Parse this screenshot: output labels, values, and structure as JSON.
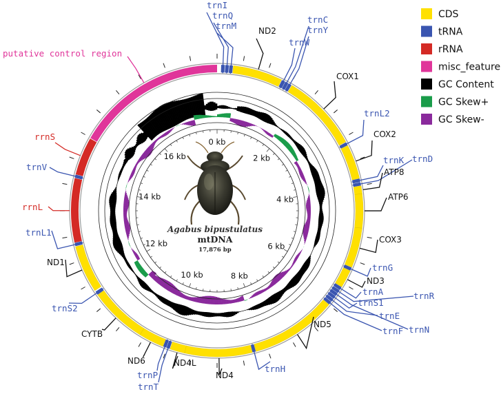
{
  "legend": [
    {
      "label": "CDS",
      "color": "#ffe000"
    },
    {
      "label": "tRNA",
      "color": "#3a55b0"
    },
    {
      "label": "rRNA",
      "color": "#d42a25"
    },
    {
      "label": "misc_feature",
      "color": "#e0359a"
    },
    {
      "label": "GC Content",
      "color": "#000000"
    },
    {
      "label": "GC Skew+",
      "color": "#1a9c4a"
    },
    {
      "label": "GC Skew-",
      "color": "#8a2a9c"
    }
  ],
  "center": {
    "species": "Agabus bipustulatus",
    "molecule": "mtDNA",
    "length": "17,876 bp"
  },
  "kb_ticks": [
    "0 kb",
    "2 kb",
    "4 kb",
    "6 kb",
    "8 kb",
    "10 kb",
    "12 kb",
    "14 kb",
    "16 kb"
  ],
  "genome_length": 17876,
  "features": [
    {
      "name": "trnI",
      "type": "tRNA",
      "start": 80,
      "end": 150
    },
    {
      "name": "trnQ",
      "type": "tRNA",
      "start": 160,
      "end": 230
    },
    {
      "name": "trnM",
      "type": "tRNA",
      "start": 240,
      "end": 310
    },
    {
      "name": "ND2",
      "type": "CDS",
      "start": 320,
      "end": 1300
    },
    {
      "name": "trnW",
      "type": "tRNA",
      "start": 1310,
      "end": 1380
    },
    {
      "name": "trnC",
      "type": "tRNA",
      "start": 1385,
      "end": 1450
    },
    {
      "name": "trnY",
      "type": "tRNA",
      "start": 1455,
      "end": 1520
    },
    {
      "name": "COX1",
      "type": "CDS",
      "start": 1530,
      "end": 3070
    },
    {
      "name": "trnL2",
      "type": "tRNA",
      "start": 3080,
      "end": 3145
    },
    {
      "name": "COX2",
      "type": "CDS",
      "start": 3150,
      "end": 3830
    },
    {
      "name": "trnK",
      "type": "tRNA",
      "start": 3835,
      "end": 3905
    },
    {
      "name": "trnD",
      "type": "tRNA",
      "start": 3910,
      "end": 3975
    },
    {
      "name": "ATP8",
      "type": "CDS",
      "start": 3980,
      "end": 4140
    },
    {
      "name": "ATP6",
      "type": "CDS",
      "start": 4135,
      "end": 4810
    },
    {
      "name": "COX3",
      "type": "CDS",
      "start": 4810,
      "end": 5600
    },
    {
      "name": "trnG",
      "type": "tRNA",
      "start": 5605,
      "end": 5670
    },
    {
      "name": "ND3",
      "type": "CDS",
      "start": 5675,
      "end": 6030
    },
    {
      "name": "trnA",
      "type": "tRNA",
      "start": 6035,
      "end": 6100
    },
    {
      "name": "trnR",
      "type": "tRNA",
      "start": 6105,
      "end": 6170
    },
    {
      "name": "trnN",
      "type": "tRNA",
      "start": 6175,
      "end": 6240
    },
    {
      "name": "trnS1",
      "type": "tRNA",
      "start": 6245,
      "end": 6310
    },
    {
      "name": "trnE",
      "type": "tRNA",
      "start": 6315,
      "end": 6380
    },
    {
      "name": "trnF",
      "type": "tRNA",
      "start": 6385,
      "end": 6450
    },
    {
      "name": "ND5",
      "type": "CDS",
      "start": 6455,
      "end": 8170
    },
    {
      "name": "trnH",
      "type": "tRNA",
      "start": 8175,
      "end": 8240
    },
    {
      "name": "ND4",
      "type": "CDS",
      "start": 8245,
      "end": 9580
    },
    {
      "name": "ND4L",
      "type": "CDS",
      "start": 9575,
      "end": 9870
    },
    {
      "name": "trnT",
      "type": "tRNA",
      "start": 9880,
      "end": 9945
    },
    {
      "name": "trnP",
      "type": "tRNA",
      "start": 9950,
      "end": 10015
    },
    {
      "name": "ND6",
      "type": "CDS",
      "start": 10020,
      "end": 10520
    },
    {
      "name": "CYTB",
      "type": "CDS",
      "start": 10520,
      "end": 11660
    },
    {
      "name": "trnS2",
      "type": "tRNA",
      "start": 11665,
      "end": 11735
    },
    {
      "name": "ND1",
      "type": "CDS",
      "start": 11760,
      "end": 12700
    },
    {
      "name": "trnL1",
      "type": "tRNA",
      "start": 12710,
      "end": 12775
    },
    {
      "name": "rrnL",
      "type": "rRNA",
      "start": 12780,
      "end": 14050
    },
    {
      "name": "trnV",
      "type": "tRNA",
      "start": 14055,
      "end": 14120
    },
    {
      "name": "rrnS",
      "type": "rRNA",
      "start": 14125,
      "end": 14880
    },
    {
      "name": "putative control region",
      "type": "misc_feature",
      "start": 14890,
      "end": 17876
    }
  ],
  "labels": [
    {
      "text": "trnI",
      "type": "tRNA",
      "pos": 115
    },
    {
      "text": "trnQ",
      "type": "tRNA",
      "pos": 195
    },
    {
      "text": "trnM",
      "type": "tRNA",
      "pos": 275
    },
    {
      "text": "ND2",
      "type": "CDS",
      "pos": 810
    },
    {
      "text": "trnC",
      "type": "tRNA",
      "pos": 1417
    },
    {
      "text": "trnY",
      "type": "tRNA",
      "pos": 1487
    },
    {
      "text": "trnW",
      "type": "tRNA",
      "pos": 1345
    },
    {
      "text": "COX1",
      "type": "CDS",
      "pos": 2300
    },
    {
      "text": "trnL2",
      "type": "tRNA",
      "pos": 3112
    },
    {
      "text": "COX2",
      "type": "CDS",
      "pos": 3490
    },
    {
      "text": "trnK",
      "type": "tRNA",
      "pos": 3870
    },
    {
      "text": "trnD",
      "type": "tRNA",
      "pos": 3942
    },
    {
      "text": "ATP8",
      "type": "CDS",
      "pos": 4060
    },
    {
      "text": "ATP6",
      "type": "CDS",
      "pos": 4470
    },
    {
      "text": "COX3",
      "type": "CDS",
      "pos": 5200
    },
    {
      "text": "trnG",
      "type": "tRNA",
      "pos": 5637
    },
    {
      "text": "ND3",
      "type": "CDS",
      "pos": 5850
    },
    {
      "text": "trnA",
      "type": "tRNA",
      "pos": 6067
    },
    {
      "text": "trnR",
      "type": "tRNA",
      "pos": 6137
    },
    {
      "text": "trnS1",
      "type": "tRNA",
      "pos": 6277
    },
    {
      "text": "trnN",
      "type": "tRNA",
      "pos": 6207
    },
    {
      "text": "trnE",
      "type": "tRNA",
      "pos": 6347
    },
    {
      "text": "trnF",
      "type": "tRNA",
      "pos": 6417
    },
    {
      "text": "ND5",
      "type": "CDS",
      "pos": 7300
    },
    {
      "text": "trnH",
      "type": "tRNA",
      "pos": 8207
    },
    {
      "text": "ND4",
      "type": "CDS",
      "pos": 8900
    },
    {
      "text": "ND4L",
      "type": "CDS",
      "pos": 9720
    },
    {
      "text": "trnP",
      "type": "tRNA",
      "pos": 9982
    },
    {
      "text": "trnT",
      "type": "tRNA",
      "pos": 9912
    },
    {
      "text": "ND6",
      "type": "CDS",
      "pos": 10270
    },
    {
      "text": "CYTB",
      "type": "CDS",
      "pos": 11090
    },
    {
      "text": "trnS2",
      "type": "tRNA",
      "pos": 11700
    },
    {
      "text": "ND1",
      "type": "CDS",
      "pos": 12230
    },
    {
      "text": "trnL1",
      "type": "tRNA",
      "pos": 12742
    },
    {
      "text": "rrnL",
      "type": "rRNA",
      "pos": 13410
    },
    {
      "text": "trnV",
      "type": "tRNA",
      "pos": 14087
    },
    {
      "text": "rrnS",
      "type": "rRNA",
      "pos": 14500
    },
    {
      "text": "putative control region",
      "type": "misc_feature",
      "pos": 16400
    }
  ]
}
